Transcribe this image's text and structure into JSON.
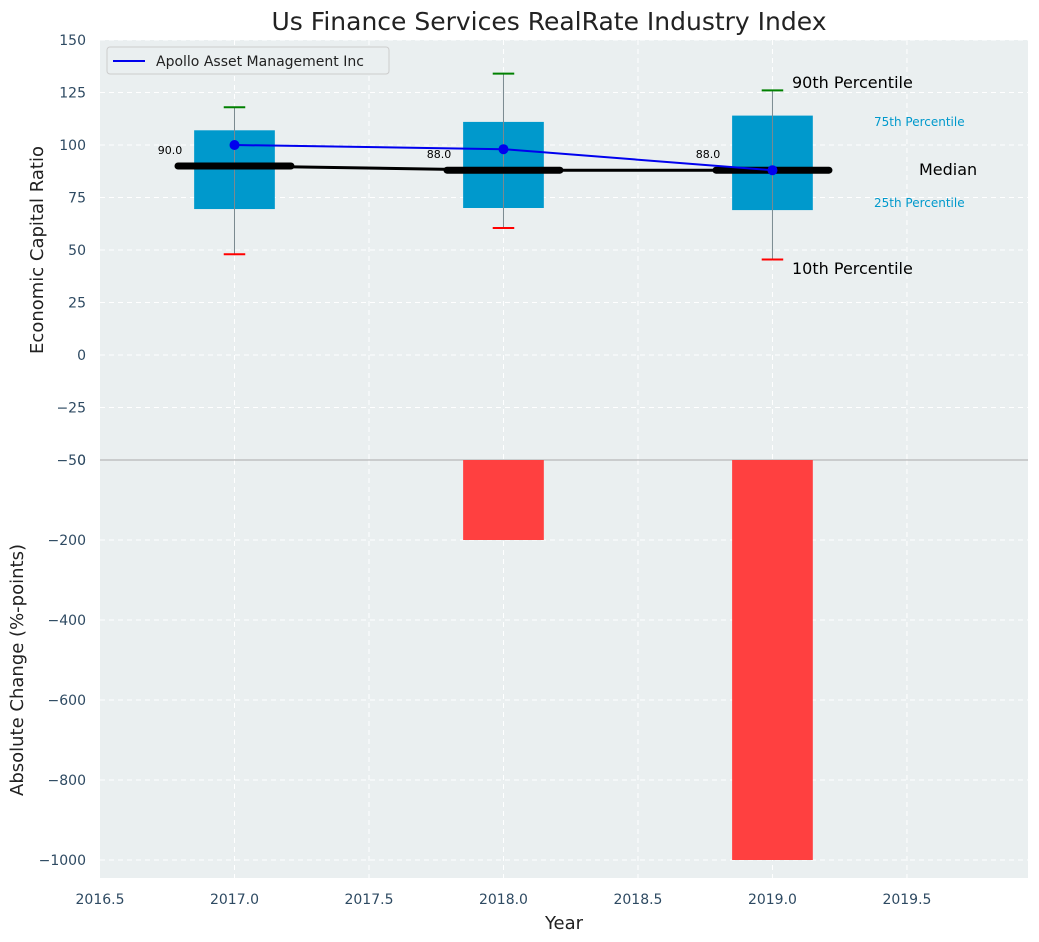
{
  "chart_data": [
    {
      "type": "box",
      "title": "Us Finance Services RealRate Industry Index",
      "ylabel": "Economic Capital Ratio",
      "ylim": [
        -50,
        150
      ],
      "yticks": [
        -50,
        -25,
        0,
        25,
        50,
        75,
        100,
        125,
        150
      ],
      "grid": true,
      "boxes": [
        {
          "x": 2017.0,
          "p10": 48,
          "p25": 69.5,
          "median": 90.0,
          "p75": 107,
          "p90": 118
        },
        {
          "x": 2018.0,
          "p10": 60.5,
          "p25": 70,
          "median": 88.0,
          "p75": 111,
          "p90": 134
        },
        {
          "x": 2019.0,
          "p10": 45.5,
          "p25": 69,
          "median": 88.0,
          "p75": 114,
          "p90": 126
        }
      ],
      "median_labels": [
        "90.0",
        "88.0",
        "88.0"
      ],
      "series": [
        {
          "name": "Apollo Asset Management Inc",
          "color": "#0000ee",
          "x": [
            2017.0,
            2018.0,
            2019.0
          ],
          "values": [
            100,
            98,
            88
          ]
        }
      ],
      "legend": "top-left",
      "annotations": {
        "p90": "90th Percentile",
        "p75": "75th Percentile",
        "median": "Median",
        "p25": "25th Percentile",
        "p10": "10th Percentile"
      }
    },
    {
      "type": "bar",
      "ylabel": "Absolute Change (%-points)",
      "xlabel": "Year",
      "x": [
        2017.0,
        2018.0,
        2019.0
      ],
      "values": [
        0,
        -200,
        -1000
      ],
      "ylim": [
        -1045,
        0
      ],
      "yticks": [
        -1000,
        -800,
        -600,
        -400,
        -200,
        0
      ],
      "xlim": [
        2016.5,
        2019.95
      ],
      "xticks": [
        2016.5,
        2017.0,
        2017.5,
        2018.0,
        2018.5,
        2019.0,
        2019.5
      ],
      "grid": true
    }
  ],
  "colors": {
    "background": "#eaeff0",
    "box": "#0099cc",
    "median": "#000000",
    "whisker_top": "#008000",
    "whisker_bottom": "#ff0000",
    "negative_bar": "#ff4040",
    "annotation_inner": "#0099cc",
    "axis_text": "#2e4a62"
  }
}
